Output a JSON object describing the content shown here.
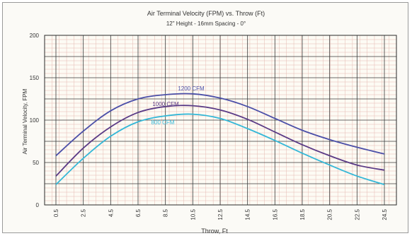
{
  "chart_data": {
    "type": "line",
    "title": "Air Terminal Velocity (FPM) vs. Throw (Ft)",
    "subtitle": "12\" Height - 16mm Spacing - 0°",
    "xlabel": "Throw, Ft",
    "ylabel": "Air Terminal Velocity, FPM",
    "x_ticks": [
      "0.5",
      "2.5",
      "4.5",
      "6.5",
      "8.5",
      "10.5",
      "12.5",
      "14.5",
      "16.5",
      "18.5",
      "20.5",
      "22.5",
      "24.5"
    ],
    "y_ticks": [
      "0",
      "50",
      "100",
      "150",
      "200"
    ],
    "xlim": [
      0.5,
      24.5
    ],
    "ylim": [
      0,
      200
    ],
    "grid": true,
    "x": [
      0.5,
      2.5,
      4.5,
      6.5,
      8.5,
      10.5,
      12.5,
      14.5,
      16.5,
      18.5,
      20.5,
      22.5,
      24.5
    ],
    "series": [
      {
        "name": "1200 CFM",
        "color": "#4b4fa8",
        "values": [
          58,
          87,
          111,
          125,
          130,
          131,
          126,
          116,
          102,
          88,
          77,
          68,
          60
        ]
      },
      {
        "name": "1000 CFM",
        "color": "#5a3a86",
        "values": [
          34,
          67,
          92,
          109,
          116,
          117,
          112,
          101,
          86,
          71,
          58,
          47,
          41
        ]
      },
      {
        "name": "800 CFM",
        "color": "#33b7d7",
        "values": [
          24,
          55,
          81,
          98,
          105,
          107,
          102,
          90,
          76,
          61,
          47,
          34,
          24
        ]
      }
    ]
  }
}
